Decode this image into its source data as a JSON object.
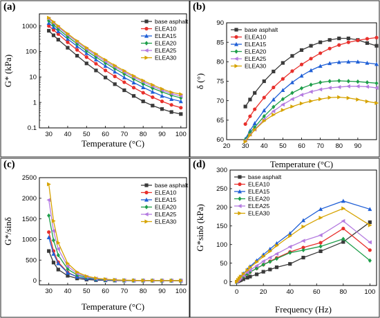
{
  "colors": {
    "base asphalt": "#3a3a3a",
    "ELEA10": "#e8302c",
    "ELEA15": "#1f5fd6",
    "ELEA20": "#1e9e4a",
    "ELEA25": "#b47be0",
    "ELEA30": "#d6a300"
  },
  "chart_data": [
    {
      "panel": "(a)",
      "type": "line",
      "xlabel": "Temperature (°C)",
      "ylabel": "G* (kPa)",
      "yscale": "log",
      "xlim": [
        25,
        103
      ],
      "ylim": [
        0.1,
        3000
      ],
      "xticks": [
        30,
        40,
        50,
        60,
        70,
        80,
        90,
        100
      ],
      "yticks": [
        0.1,
        1,
        10,
        100,
        1000
      ],
      "ytick_labels": [
        "0.1",
        "1",
        "10",
        "100",
        "1000"
      ],
      "legend": "top-right",
      "x": [
        30,
        32.5,
        35,
        40,
        45,
        50,
        55,
        60,
        65,
        70,
        75,
        80,
        85,
        90,
        95,
        100
      ],
      "series": [
        {
          "name": "base asphalt",
          "marker": "square",
          "values": [
            650,
            430,
            290,
            140,
            68,
            34,
            18,
            9.5,
            5.2,
            3.0,
            1.8,
            1.1,
            0.75,
            0.55,
            0.42,
            0.35
          ]
        },
        {
          "name": "ELEA10",
          "marker": "circle",
          "values": [
            1000,
            700,
            480,
            230,
            115,
            60,
            33,
            18,
            10.5,
            6.2,
            3.8,
            2.4,
            1.6,
            1.1,
            0.8,
            0.62
          ]
        },
        {
          "name": "ELEA15",
          "marker": "triangle",
          "values": [
            1300,
            900,
            620,
            310,
            160,
            85,
            48,
            27,
            16,
            9.5,
            6.0,
            3.9,
            2.6,
            1.8,
            1.35,
            1.1
          ]
        },
        {
          "name": "ELEA20",
          "marker": "diamond",
          "values": [
            1600,
            1100,
            760,
            380,
            200,
            105,
            60,
            35,
            21,
            13,
            8.2,
            5.3,
            3.6,
            2.6,
            1.9,
            1.5
          ]
        },
        {
          "name": "ELEA25",
          "marker": "triangle-left",
          "values": [
            1900,
            1320,
            900,
            450,
            235,
            125,
            71,
            41,
            25,
            15.5,
            9.8,
            6.4,
            4.3,
            3.0,
            2.2,
            1.8
          ]
        },
        {
          "name": "ELEA30",
          "marker": "triangle-right",
          "values": [
            2100,
            1450,
            1000,
            500,
            260,
            140,
            80,
            47,
            28,
            17.5,
            11,
            7.2,
            4.9,
            3.4,
            2.5,
            2.1
          ]
        }
      ]
    },
    {
      "panel": "(b)",
      "type": "line",
      "xlabel": "Temperature (°C)",
      "ylabel": "δ (°)",
      "xlim": [
        20,
        100
      ],
      "ylim": [
        60,
        90
      ],
      "xticks": [
        20,
        30,
        40,
        50,
        60,
        70,
        80,
        90
      ],
      "yticks": [
        60,
        65,
        70,
        75,
        80,
        85,
        90
      ],
      "legend": "top-left",
      "x": [
        30,
        32.5,
        35,
        40,
        45,
        50,
        55,
        60,
        65,
        70,
        75,
        80,
        85,
        90,
        95,
        100
      ],
      "series": [
        {
          "name": "base asphalt",
          "marker": "square",
          "values": [
            68.5,
            70.3,
            72.0,
            75.0,
            77.5,
            79.7,
            81.5,
            83.0,
            84.1,
            85.0,
            85.6,
            86.0,
            86.0,
            85.6,
            84.8,
            84.1
          ]
        },
        {
          "name": "ELEA10",
          "marker": "circle",
          "values": [
            64.0,
            66.0,
            67.8,
            70.8,
            73.4,
            75.6,
            77.6,
            79.3,
            80.8,
            82.2,
            83.4,
            84.3,
            85.0,
            85.5,
            85.9,
            86.2
          ]
        },
        {
          "name": "ELEA15",
          "marker": "triangle",
          "values": [
            60.2,
            62.3,
            64.2,
            67.5,
            70.3,
            72.7,
            74.7,
            76.4,
            77.8,
            78.9,
            79.6,
            79.9,
            80.0,
            80.0,
            79.7,
            79.4
          ]
        },
        {
          "name": "ELEA20",
          "marker": "diamond",
          "values": [
            60.0,
            61.8,
            63.2,
            66.0,
            68.4,
            70.4,
            72.0,
            73.2,
            74.1,
            74.7,
            75.0,
            75.1,
            75.0,
            74.9,
            74.7,
            74.5
          ]
        },
        {
          "name": "ELEA25",
          "marker": "triangle-left",
          "values": [
            59.8,
            61.3,
            62.6,
            65.2,
            67.3,
            69.0,
            70.4,
            71.5,
            72.3,
            72.9,
            73.3,
            73.5,
            73.7,
            73.7,
            73.6,
            73.3
          ]
        },
        {
          "name": "ELEA30",
          "marker": "triangle-right",
          "values": [
            59.5,
            61.1,
            62.5,
            64.8,
            66.4,
            67.6,
            68.5,
            69.3,
            69.9,
            70.4,
            70.8,
            70.9,
            70.7,
            70.3,
            69.8,
            69.4
          ]
        }
      ]
    },
    {
      "panel": "(c)",
      "type": "line",
      "xlabel": "Temperature (°C)",
      "ylabel": "G*/sinδ",
      "xlim": [
        25,
        103
      ],
      "ylim": [
        -100,
        2500
      ],
      "xticks": [
        30,
        40,
        50,
        60,
        70,
        80,
        90,
        100
      ],
      "yticks": [
        0,
        500,
        1000,
        1500,
        2000,
        2500
      ],
      "legend": "top-right",
      "x": [
        30,
        32.5,
        35,
        40,
        45,
        50,
        55,
        60,
        65,
        70,
        75,
        80,
        85,
        90,
        95,
        100
      ],
      "series": [
        {
          "name": "base asphalt",
          "marker": "square",
          "values": [
            720,
            440,
            270,
            120,
            55,
            27,
            14,
            8,
            4,
            2,
            1,
            0.8,
            0.5,
            0.4,
            0.3,
            0.2
          ]
        },
        {
          "name": "ELEA10",
          "marker": "circle",
          "values": [
            1180,
            720,
            450,
            200,
            95,
            48,
            25,
            14,
            8,
            4,
            2,
            1.5,
            1,
            0.7,
            0.5,
            0.4
          ]
        },
        {
          "name": "ELEA15",
          "marker": "triangle",
          "values": [
            1050,
            650,
            420,
            190,
            95,
            50,
            27,
            15,
            9,
            5,
            3,
            2,
            1.5,
            1,
            0.8,
            0.6
          ]
        },
        {
          "name": "ELEA20",
          "marker": "diamond",
          "values": [
            1580,
            980,
            620,
            280,
            140,
            75,
            42,
            24,
            14,
            9,
            5,
            3,
            2,
            1.5,
            1,
            0.8
          ]
        },
        {
          "name": "ELEA25",
          "marker": "triangle-left",
          "values": [
            1960,
            1210,
            770,
            350,
            175,
            92,
            52,
            30,
            18,
            11,
            7,
            4,
            3,
            2,
            1.5,
            1
          ]
        },
        {
          "name": "ELEA30",
          "marker": "triangle-right",
          "values": [
            2340,
            1450,
            920,
            420,
            210,
            110,
            62,
            36,
            22,
            13,
            8,
            5,
            3.5,
            2.5,
            2,
            1.5
          ]
        }
      ]
    },
    {
      "panel": "(d)",
      "type": "line",
      "xlabel": "Frequency (Hz)",
      "ylabel": "G*sinδ (kPa)",
      "xlim": [
        -5,
        105
      ],
      "ylim": [
        -10,
        300
      ],
      "xticks": [
        0,
        20,
        40,
        60,
        80,
        100
      ],
      "yticks": [
        0,
        50,
        100,
        150,
        200,
        250,
        300
      ],
      "legend": "top-left",
      "x": [
        0,
        1,
        2,
        3,
        5,
        8,
        10,
        15,
        20,
        25,
        30,
        40,
        50,
        63,
        80,
        100
      ],
      "series": [
        {
          "name": "base asphalt",
          "marker": "square",
          "values": [
            0,
            1.5,
            3,
            4.5,
            7,
            11,
            14,
            20,
            27,
            33,
            39,
            48,
            65,
            82,
            107,
            160
          ]
        },
        {
          "name": "ELEA10",
          "marker": "circle",
          "values": [
            0,
            3,
            6,
            9,
            14,
            21,
            26,
            36,
            46,
            55,
            64,
            80,
            92,
            105,
            143,
            85
          ]
        },
        {
          "name": "ELEA15",
          "marker": "triangle",
          "values": [
            0,
            5,
            10,
            14,
            22,
            33,
            41,
            57,
            73,
            88,
            103,
            130,
            165,
            195,
            217,
            195
          ]
        },
        {
          "name": "ELEA20",
          "marker": "diamond",
          "values": [
            0,
            3,
            6,
            9,
            14,
            21,
            26,
            36,
            46,
            54,
            62,
            78,
            85,
            95,
            115,
            57
          ]
        },
        {
          "name": "ELEA25",
          "marker": "triangle-left",
          "values": [
            0,
            4,
            7.5,
            11,
            17,
            25,
            31,
            43,
            55,
            65,
            75,
            94,
            110,
            125,
            163,
            106
          ]
        },
        {
          "name": "ELEA30",
          "marker": "triangle-right",
          "values": [
            0,
            5,
            9.5,
            14,
            21,
            31,
            38,
            53,
            68,
            82,
            97,
            123,
            148,
            172,
            197,
            152
          ]
        }
      ]
    }
  ]
}
